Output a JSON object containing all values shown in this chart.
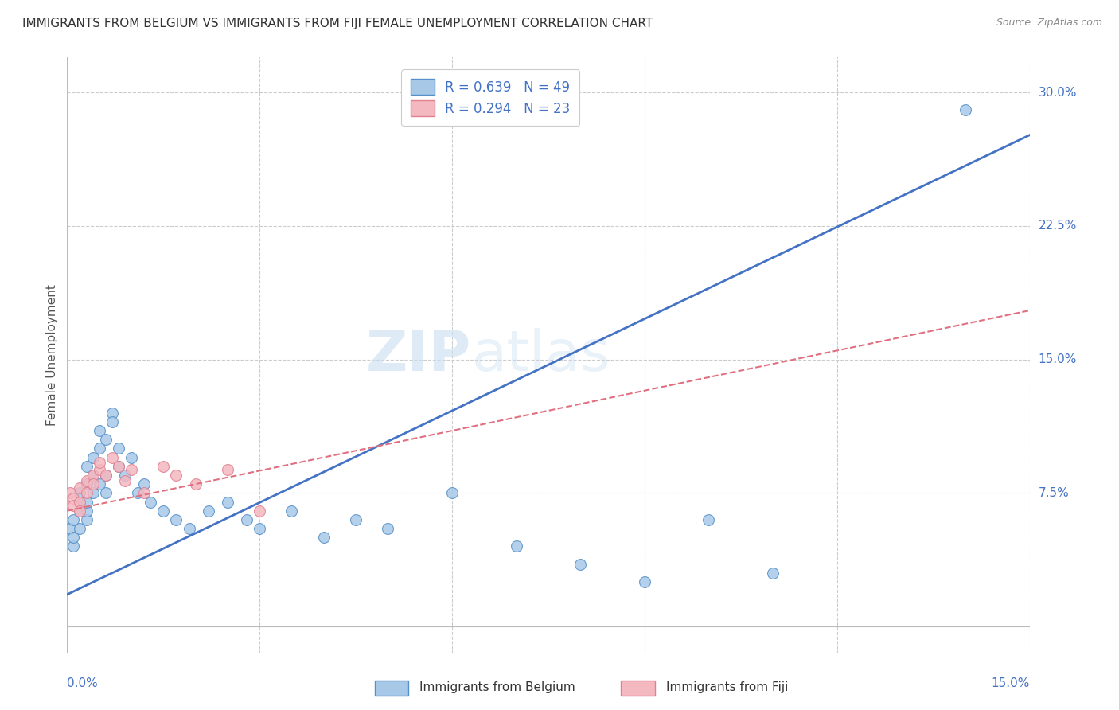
{
  "title": "IMMIGRANTS FROM BELGIUM VS IMMIGRANTS FROM FIJI FEMALE UNEMPLOYMENT CORRELATION CHART",
  "source": "Source: ZipAtlas.com",
  "ylabel": "Female Unemployment",
  "ytick_labels": [
    "7.5%",
    "15.0%",
    "22.5%",
    "30.0%"
  ],
  "ytick_values": [
    0.075,
    0.15,
    0.225,
    0.3
  ],
  "xtick_labels": [
    "0.0%",
    "15.0%"
  ],
  "xlim": [
    0.0,
    0.15
  ],
  "ylim": [
    -0.015,
    0.32
  ],
  "legend_r1": "R = 0.639",
  "legend_n1": "N = 49",
  "legend_r2": "R = 0.294",
  "legend_n2": "N = 23",
  "legend_label1": "Immigrants from Belgium",
  "legend_label2": "Immigrants from Fiji",
  "watermark_zip": "ZIP",
  "watermark_atlas": "atlas",
  "belgium_color": "#a8c8e8",
  "belgium_edge_color": "#5590c8",
  "fiji_color": "#f4b8c0",
  "fiji_edge_color": "#e08090",
  "belgium_line_color": "#4472C4",
  "fiji_line_color": "#e07080",
  "belgium_x": [
    0.0005,
    0.001,
    0.001,
    0.001,
    0.002,
    0.002,
    0.002,
    0.002,
    0.003,
    0.003,
    0.003,
    0.003,
    0.003,
    0.004,
    0.004,
    0.004,
    0.005,
    0.005,
    0.005,
    0.006,
    0.006,
    0.006,
    0.007,
    0.007,
    0.008,
    0.008,
    0.009,
    0.01,
    0.011,
    0.012,
    0.013,
    0.015,
    0.017,
    0.019,
    0.022,
    0.025,
    0.028,
    0.03,
    0.035,
    0.04,
    0.045,
    0.05,
    0.06,
    0.07,
    0.08,
    0.09,
    0.1,
    0.11,
    0.14
  ],
  "belgium_y": [
    0.055,
    0.045,
    0.06,
    0.05,
    0.065,
    0.07,
    0.055,
    0.075,
    0.08,
    0.06,
    0.065,
    0.07,
    0.09,
    0.075,
    0.085,
    0.095,
    0.1,
    0.08,
    0.11,
    0.105,
    0.085,
    0.075,
    0.12,
    0.115,
    0.1,
    0.09,
    0.085,
    0.095,
    0.075,
    0.08,
    0.07,
    0.065,
    0.06,
    0.055,
    0.065,
    0.07,
    0.06,
    0.055,
    0.065,
    0.05,
    0.06,
    0.055,
    0.075,
    0.045,
    0.035,
    0.025,
    0.06,
    0.03,
    0.29
  ],
  "fiji_x": [
    0.0005,
    0.001,
    0.001,
    0.002,
    0.002,
    0.002,
    0.003,
    0.003,
    0.004,
    0.004,
    0.005,
    0.005,
    0.006,
    0.007,
    0.008,
    0.009,
    0.01,
    0.012,
    0.015,
    0.017,
    0.02,
    0.025,
    0.03
  ],
  "fiji_y": [
    0.075,
    0.072,
    0.068,
    0.078,
    0.07,
    0.065,
    0.082,
    0.075,
    0.085,
    0.08,
    0.088,
    0.092,
    0.085,
    0.095,
    0.09,
    0.082,
    0.088,
    0.075,
    0.09,
    0.085,
    0.08,
    0.088,
    0.065
  ],
  "belgium_slope": 1.72,
  "belgium_intercept": 0.018,
  "fiji_slope": 0.75,
  "fiji_intercept": 0.065,
  "n_hgrid": 4,
  "n_vgrid": 5
}
